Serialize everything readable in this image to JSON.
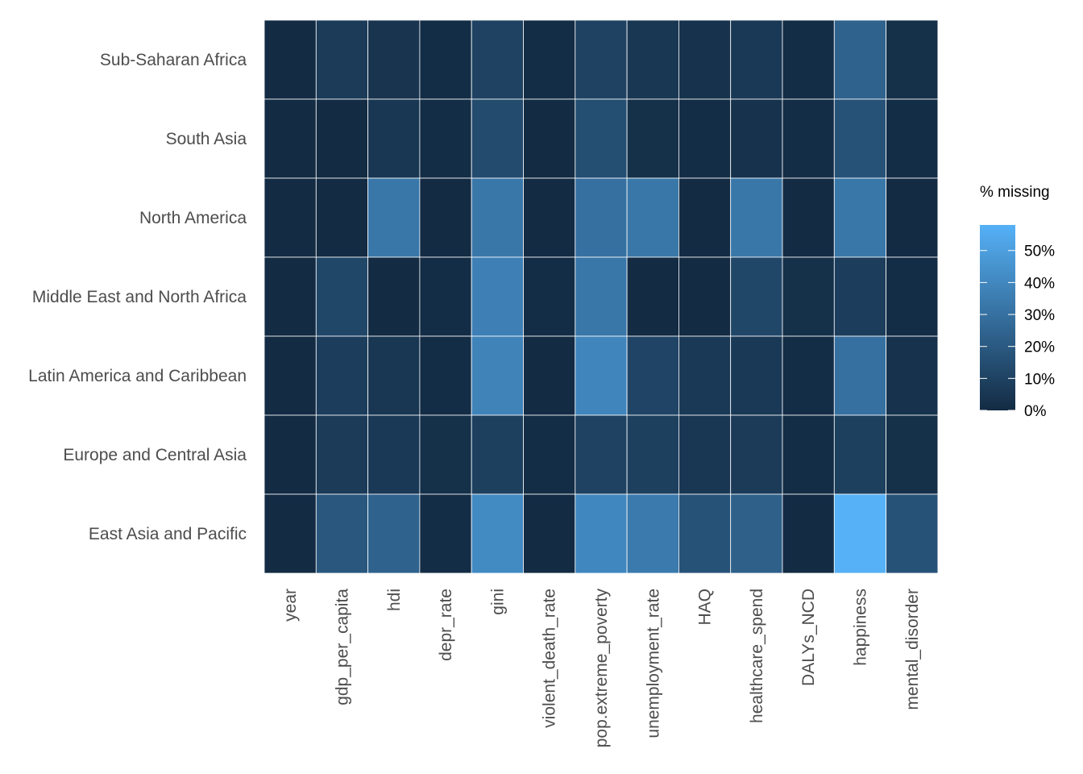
{
  "chart_data": {
    "type": "heatmap",
    "title": "",
    "xlabel": "",
    "ylabel": "",
    "x_categories": [
      "year",
      "gdp_per_capita",
      "hdi",
      "depr_rate",
      "gini",
      "violent_death_rate",
      "pop.extreme_poverty",
      "unemployment_rate",
      "HAQ",
      "healthcare_spend",
      "DALYs_NCD",
      "happiness",
      "mental_disorder"
    ],
    "y_categories": [
      "Sub-Saharan Africa",
      "South Asia",
      "North America",
      "Middle East and North Africa",
      "Latin America and Caribbean",
      "Europe and Central Asia",
      "East Asia and Pacific"
    ],
    "values": [
      [
        0,
        7,
        4,
        1,
        10,
        1,
        10,
        5,
        3,
        6,
        1,
        24,
        2
      ],
      [
        0,
        0,
        5,
        1,
        14,
        0,
        15,
        2,
        1,
        3,
        1,
        17,
        1
      ],
      [
        0,
        0,
        33,
        0,
        33,
        0,
        30,
        33,
        0,
        33,
        0,
        33,
        0
      ],
      [
        0,
        12,
        0,
        1,
        37,
        1,
        33,
        0,
        0,
        12,
        2,
        8,
        1
      ],
      [
        0,
        8,
        5,
        1,
        38,
        0,
        39,
        11,
        6,
        6,
        1,
        30,
        3
      ],
      [
        0,
        7,
        6,
        2,
        9,
        1,
        10,
        9,
        5,
        7,
        1,
        9,
        2
      ],
      [
        0,
        19,
        24,
        1,
        41,
        0,
        40,
        34,
        17,
        23,
        0,
        58,
        17
      ]
    ],
    "legend": {
      "title": "% missing",
      "ticks": [
        "0%",
        "10%",
        "20%",
        "30%",
        "40%",
        "50%"
      ],
      "tick_values": [
        0,
        10,
        20,
        30,
        40,
        50
      ],
      "range": [
        0,
        58
      ],
      "position": "right"
    },
    "colors": {
      "low": "#132b43",
      "high": "#56b1f7",
      "grid_line": "#ffffff",
      "label_text": "#4d4d4d"
    }
  }
}
